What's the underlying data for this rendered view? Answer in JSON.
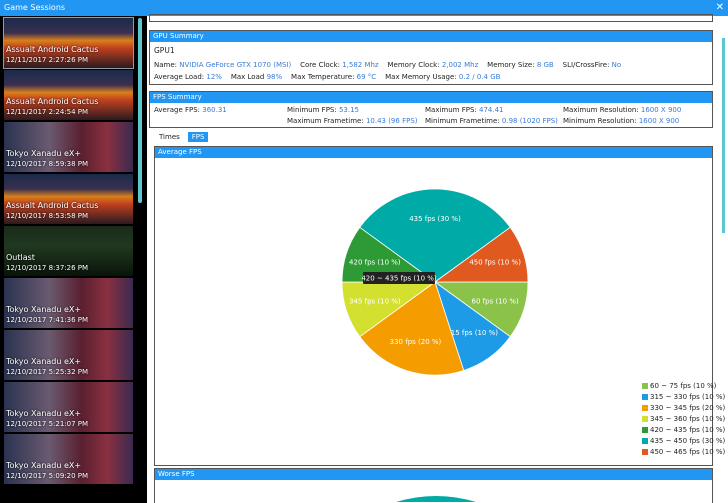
{
  "window": {
    "title": "Game Sessions",
    "close_icon": "close-icon"
  },
  "sessions": [
    {
      "title": "Assualt Android Cactus",
      "date": "12/11/2017 2:27:26 PM",
      "theme": "cactus"
    },
    {
      "title": "Assualt Android Cactus",
      "date": "12/11/2017 2:24:54 PM",
      "theme": "cactus"
    },
    {
      "title": "Tokyo Xanadu eX+",
      "date": "12/10/2017 8:59:38 PM",
      "theme": "xanadu"
    },
    {
      "title": "Assualt Android Cactus",
      "date": "12/10/2017 8:53:58 PM",
      "theme": "cactus"
    },
    {
      "title": "Outlast",
      "date": "12/10/2017 8:37:26 PM",
      "theme": "outlast"
    },
    {
      "title": "Tokyo Xanadu eX+",
      "date": "12/10/2017 7:41:36 PM",
      "theme": "xanadu"
    },
    {
      "title": "Tokyo Xanadu eX+",
      "date": "12/10/2017 5:25:32 PM",
      "theme": "xanadu"
    },
    {
      "title": "Tokyo Xanadu eX+",
      "date": "12/10/2017 5:21:07 PM",
      "theme": "xanadu"
    },
    {
      "title": "Tokyo Xanadu eX+",
      "date": "12/10/2017 5:09:20 PM",
      "theme": "xanadu"
    }
  ],
  "gpu": {
    "header": "GPU Summary",
    "name": "GPU1",
    "l_name": "Name:",
    "v_name": "NVIDIA GeForce GTX 1070 (MSI)",
    "l_core": "Core Clock:",
    "v_core": "1,582 Mhz",
    "l_mem": "Memory Clock:",
    "v_mem": "2,002 Mhz",
    "l_size": "Memory Size:",
    "v_size": "8 GB",
    "l_sli": "SLI/CrossFire:",
    "v_sli": "No",
    "l_avg": "Average Load:",
    "v_avg": "12%",
    "l_max": "Max Load",
    "v_max": "98%",
    "l_temp": "Max Temperature:",
    "v_temp": "69 °C",
    "l_usage": "Max Memory Usage:",
    "v_usage": "0.2 / 0.4 GB"
  },
  "fps": {
    "header": "FPS Summary",
    "l_avg": "Average FPS:",
    "v_avg": "360.31",
    "l_min": "Minimum FPS:",
    "v_min": "53.15",
    "l_max": "Maximum FPS:",
    "v_max": "474.41",
    "l_maxres": "Maximum Resolution:",
    "v_maxres": "1600 X 900",
    "l_maxft": "Maximum Frametime:",
    "v_maxft": "10.43 (96 FPS)",
    "l_minft": "Minimum Frametime:",
    "v_minft": "0.98 (1020 FPS)",
    "l_minres": "Minimum Resolution:",
    "v_minres": "1600 X 900"
  },
  "tabs": [
    "Times",
    "FPS"
  ],
  "active_tab": "FPS",
  "tooltip": "420 ~ 435  fps (10 %)",
  "worse_header": "Worse FPS",
  "chart_data": {
    "type": "pie",
    "title": "Average FPS",
    "legend": "bottom-right",
    "slices": [
      {
        "label": "60 fps (10 %)",
        "legend": "60 ~ 75  fps (10 %)",
        "value": 10,
        "color": "#8bc34a"
      },
      {
        "label": "315 fps (10 %)",
        "legend": "315 ~ 330  fps (10 %)",
        "value": 10,
        "color": "#1e9be6"
      },
      {
        "label": "330 fps (20 %)",
        "legend": "330 ~ 345  fps (20 %)",
        "value": 20,
        "color": "#f59c00"
      },
      {
        "label": "345 fps (10 %)",
        "legend": "345 ~ 360  fps (10 %)",
        "value": 10,
        "color": "#d4e030"
      },
      {
        "label": "420 fps (10 %)",
        "legend": "420 ~ 435  fps (10 %)",
        "value": 10,
        "color": "#2e9a35"
      },
      {
        "label": "435 fps (30 %)",
        "legend": "435 ~ 450  fps (30 %)",
        "value": 30,
        "color": "#00aaa6"
      },
      {
        "label": "450 fps (10 %)",
        "legend": "450 ~ 465  fps (10 %)",
        "value": 10,
        "color": "#e05a20"
      }
    ]
  }
}
